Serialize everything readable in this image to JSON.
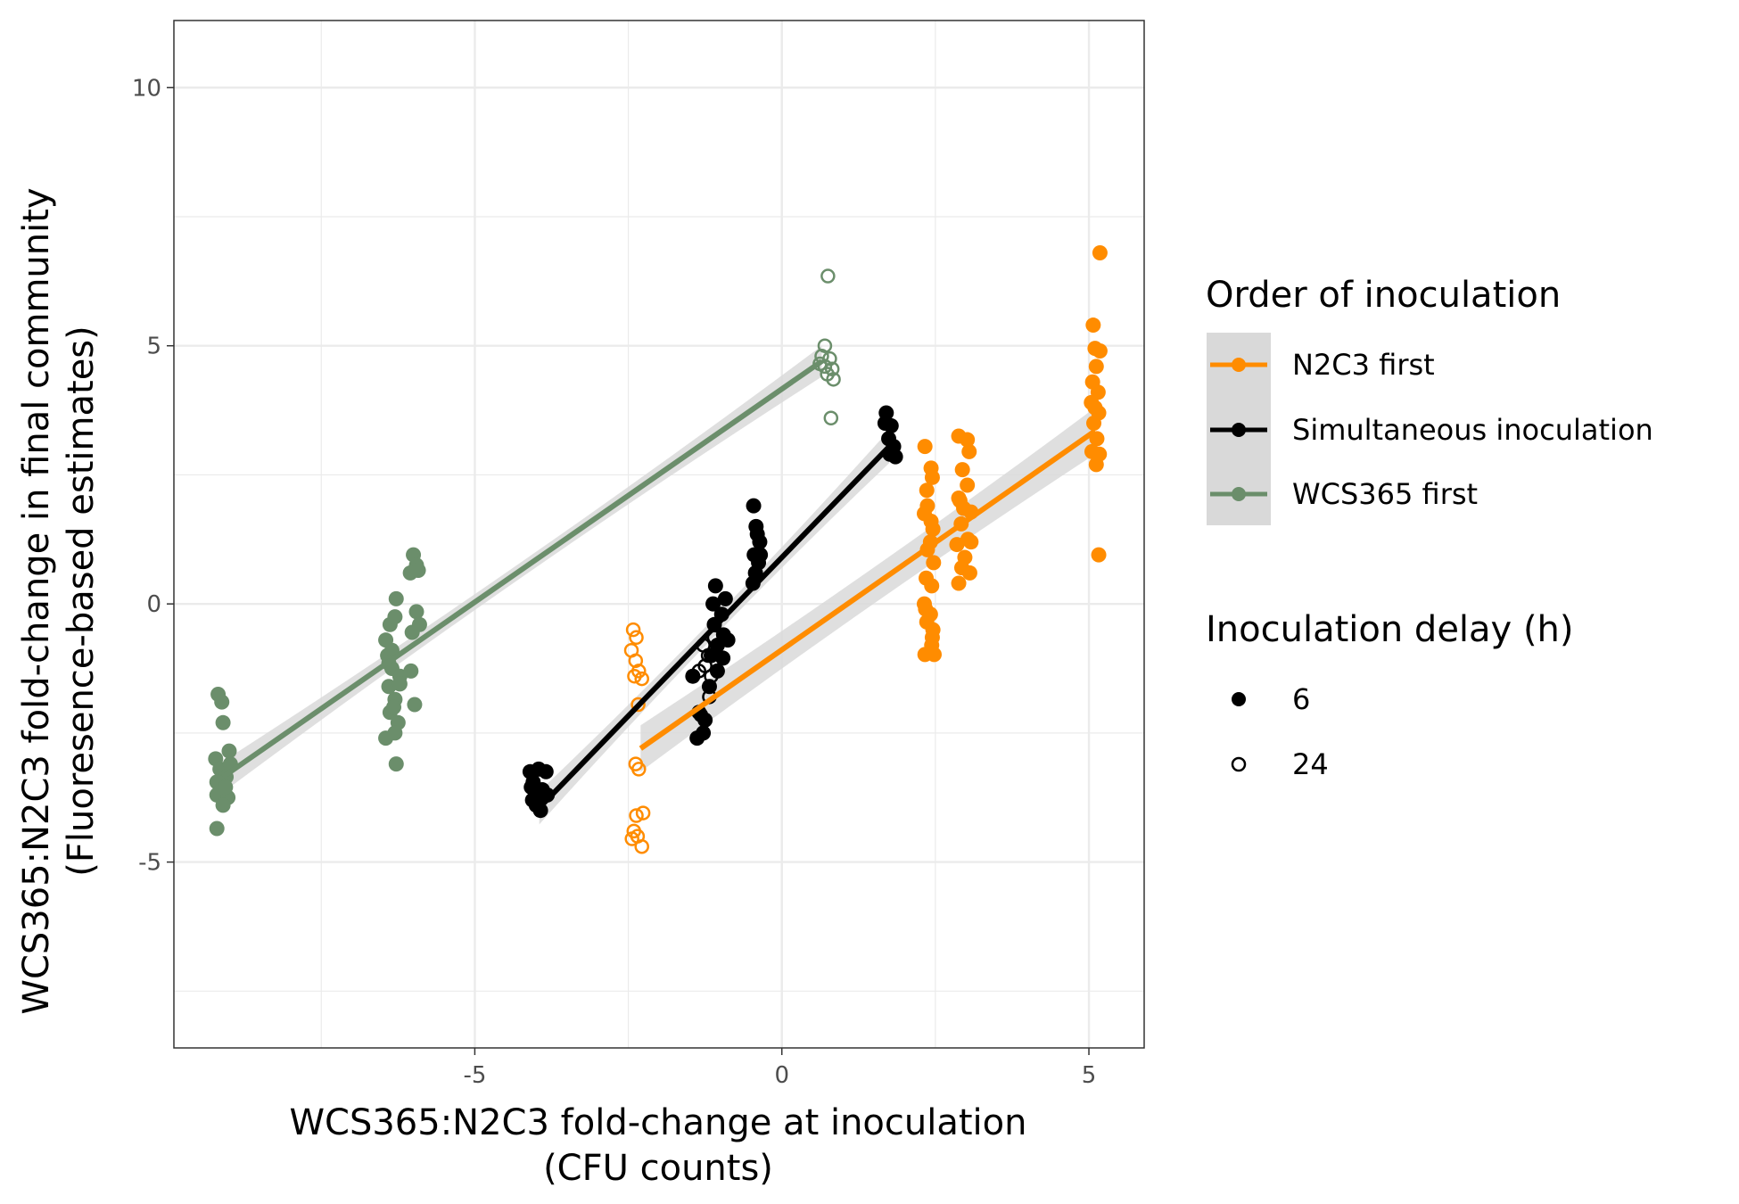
{
  "chart_data": {
    "type": "scatter",
    "xlabel": [
      "WCS365:N2C3 fold-change at inoculation",
      "(CFU counts)"
    ],
    "ylabel": [
      "WCS365:N2C3 fold-change in final community",
      "(Fluoresence-based estimates)"
    ],
    "xlim": [
      -9.9,
      5.9
    ],
    "ylim": [
      -8.6,
      11.3
    ],
    "xticks": [
      -5,
      0,
      5
    ],
    "xtick_labels": [
      "-5",
      "0",
      "5"
    ],
    "yticks": [
      -5,
      0,
      5,
      10
    ],
    "ytick_labels": [
      "-5",
      "0",
      "5",
      "10"
    ],
    "grid": true,
    "legend_placement": "right",
    "colors": {
      "N2C3 first": "#ff8c00",
      "Simultaneous inoculation": "#000000",
      "WCS365 first": "#6b8e6b",
      "ribbon": "#d9d9d9",
      "grid_major": "#ebebeb",
      "panel_border": "#333333"
    },
    "legend_color": {
      "title": "Order of inoculation",
      "entries": [
        "N2C3 first",
        "Simultaneous inoculation",
        "WCS365 first"
      ]
    },
    "legend_shape": {
      "title": "Inoculation delay (h)",
      "entries": [
        {
          "label": "6",
          "shape": "filled-circle"
        },
        {
          "label": "24",
          "shape": "open-circle"
        }
      ]
    },
    "series": [
      {
        "name": "N2C3 first",
        "color": "#ff8c00",
        "fit": {
          "x": [
            -2.3,
            5.1
          ],
          "y": [
            -2.8,
            3.35
          ]
        },
        "ribbon_halfwidth": [
          0.45,
          0.35,
          0.45
        ],
        "points_6h": [
          [
            2.33,
            3.05
          ],
          [
            2.43,
            2.63
          ],
          [
            2.45,
            2.45
          ],
          [
            2.37,
            1.9
          ],
          [
            2.32,
            1.75
          ],
          [
            2.46,
            1.45
          ],
          [
            2.42,
            1.2
          ],
          [
            2.37,
            1.05
          ],
          [
            2.47,
            0.8
          ],
          [
            2.35,
            0.5
          ],
          [
            2.44,
            0.35
          ],
          [
            2.32,
            0.0
          ],
          [
            2.42,
            -0.2
          ],
          [
            2.36,
            -0.35
          ],
          [
            2.46,
            -0.5
          ],
          [
            2.44,
            -0.8
          ],
          [
            2.33,
            -0.98
          ],
          [
            2.48,
            -0.98
          ],
          [
            2.45,
            -0.65
          ],
          [
            2.34,
            -0.1
          ],
          [
            2.43,
            1.6
          ],
          [
            2.36,
            2.2
          ],
          [
            2.88,
            3.25
          ],
          [
            3.02,
            3.18
          ],
          [
            3.05,
            2.95
          ],
          [
            2.94,
            2.6
          ],
          [
            3.02,
            2.3
          ],
          [
            2.88,
            2.05
          ],
          [
            2.96,
            1.85
          ],
          [
            3.08,
            1.78
          ],
          [
            2.92,
            1.55
          ],
          [
            3.03,
            1.25
          ],
          [
            2.85,
            1.15
          ],
          [
            2.98,
            0.9
          ],
          [
            3.06,
            0.6
          ],
          [
            2.88,
            0.4
          ],
          [
            2.93,
            0.7
          ],
          [
            3.08,
            1.2
          ],
          [
            2.9,
            2.0
          ],
          [
            5.07,
            5.4
          ],
          [
            5.18,
            4.9
          ],
          [
            5.12,
            4.6
          ],
          [
            5.06,
            4.3
          ],
          [
            5.15,
            4.1
          ],
          [
            5.04,
            3.9
          ],
          [
            5.16,
            3.7
          ],
          [
            5.08,
            3.5
          ],
          [
            5.13,
            3.2
          ],
          [
            5.05,
            2.95
          ],
          [
            5.17,
            2.9
          ],
          [
            5.12,
            2.7
          ],
          [
            5.18,
            6.8
          ],
          [
            5.16,
            0.95
          ],
          [
            5.1,
            3.8
          ],
          [
            5.1,
            4.95
          ]
        ],
        "points_24h": [
          [
            -2.42,
            -0.5
          ],
          [
            -2.37,
            -0.65
          ],
          [
            -2.45,
            -0.9
          ],
          [
            -2.38,
            -1.1
          ],
          [
            -2.33,
            -1.3
          ],
          [
            -2.4,
            -1.4
          ],
          [
            -2.28,
            -1.45
          ],
          [
            -2.34,
            -1.95
          ],
          [
            -2.38,
            -3.1
          ],
          [
            -2.33,
            -3.2
          ],
          [
            -2.26,
            -4.05
          ],
          [
            -2.37,
            -4.1
          ],
          [
            -2.41,
            -4.4
          ],
          [
            -2.35,
            -4.5
          ],
          [
            -2.44,
            -4.55
          ],
          [
            -2.28,
            -4.7
          ]
        ]
      },
      {
        "name": "Simultaneous inoculation",
        "color": "#000000",
        "fit": {
          "x": [
            -3.95,
            1.75
          ],
          "y": [
            -3.95,
            3.05
          ]
        },
        "ribbon_halfwidth": [
          0.32,
          0.18,
          0.32
        ],
        "points_6h": [
          [
            -4.1,
            -3.25
          ],
          [
            -3.96,
            -3.2
          ],
          [
            -3.84,
            -3.25
          ],
          [
            -4.05,
            -3.45
          ],
          [
            -3.9,
            -3.6
          ],
          [
            -4.06,
            -3.8
          ],
          [
            -3.94,
            -3.75
          ],
          [
            -4.0,
            -3.9
          ],
          [
            -3.82,
            -3.7
          ],
          [
            -4.08,
            -3.55
          ],
          [
            -3.93,
            -4.0
          ],
          [
            -1.38,
            -2.6
          ],
          [
            -1.28,
            -2.5
          ],
          [
            -1.35,
            -2.1
          ],
          [
            -1.25,
            -2.25
          ],
          [
            -1.45,
            -1.4
          ],
          [
            -1.15,
            -1.0
          ],
          [
            -1.05,
            -0.8
          ],
          [
            -0.95,
            -0.6
          ],
          [
            -1.1,
            -0.4
          ],
          [
            -0.98,
            -0.2
          ],
          [
            -1.12,
            0.0
          ],
          [
            -0.92,
            0.1
          ],
          [
            -1.08,
            0.35
          ],
          [
            -0.88,
            -0.7
          ],
          [
            -1.18,
            -1.6
          ],
          [
            -1.05,
            -1.3
          ],
          [
            -0.96,
            -1.05
          ],
          [
            -0.46,
            1.9
          ],
          [
            -0.42,
            1.5
          ],
          [
            -0.36,
            1.2
          ],
          [
            -0.45,
            0.95
          ],
          [
            -0.38,
            0.8
          ],
          [
            -0.43,
            0.6
          ],
          [
            -0.35,
            0.95
          ],
          [
            -0.47,
            0.4
          ],
          [
            -0.4,
            1.35
          ],
          [
            1.7,
            3.7
          ],
          [
            1.78,
            3.45
          ],
          [
            1.74,
            3.2
          ],
          [
            1.82,
            3.05
          ],
          [
            1.76,
            2.9
          ],
          [
            1.68,
            3.5
          ],
          [
            1.85,
            2.85
          ]
        ],
        "points_24h": [
          [
            -1.35,
            -1.3
          ],
          [
            -1.25,
            -1.2
          ],
          [
            -1.15,
            -1.4
          ],
          [
            -1.2,
            -1.0
          ],
          [
            -1.28,
            -0.8
          ],
          [
            -1.1,
            -0.65
          ],
          [
            -1.18,
            -1.8
          ],
          [
            -1.32,
            -2.15
          ]
        ]
      },
      {
        "name": "WCS365 first",
        "color": "#6b8e6b",
        "fit": {
          "x": [
            -9.1,
            0.65
          ],
          "y": [
            -3.35,
            4.7
          ]
        },
        "ribbon_halfwidth": [
          0.3,
          0.15,
          0.3
        ],
        "points_6h": [
          [
            -9.18,
            -1.75
          ],
          [
            -9.12,
            -1.9
          ],
          [
            -9.1,
            -2.3
          ],
          [
            -9.22,
            -3.0
          ],
          [
            -9.0,
            -2.85
          ],
          [
            -9.15,
            -3.2
          ],
          [
            -9.05,
            -3.35
          ],
          [
            -9.2,
            -3.45
          ],
          [
            -8.98,
            -3.1
          ],
          [
            -9.12,
            -3.6
          ],
          [
            -9.2,
            -3.7
          ],
          [
            -9.02,
            -3.75
          ],
          [
            -9.1,
            -3.9
          ],
          [
            -9.2,
            -4.35
          ],
          [
            -9.06,
            -3.55
          ],
          [
            -6.45,
            -0.7
          ],
          [
            -6.38,
            -0.4
          ],
          [
            -6.3,
            -0.25
          ],
          [
            -6.28,
            0.1
          ],
          [
            -6.42,
            -1.0
          ],
          [
            -6.35,
            -1.25
          ],
          [
            -6.22,
            -1.4
          ],
          [
            -6.4,
            -1.6
          ],
          [
            -6.3,
            -1.85
          ],
          [
            -6.38,
            -2.1
          ],
          [
            -6.25,
            -2.3
          ],
          [
            -6.45,
            -2.6
          ],
          [
            -6.3,
            -2.5
          ],
          [
            -6.28,
            -3.1
          ],
          [
            -6.35,
            -0.9
          ],
          [
            -6.22,
            -1.55
          ],
          [
            -6.4,
            -1.15
          ],
          [
            -6.32,
            -2.0
          ],
          [
            -6.0,
            0.95
          ],
          [
            -5.95,
            0.75
          ],
          [
            -6.05,
            0.6
          ],
          [
            -5.92,
            0.65
          ],
          [
            -5.95,
            -0.15
          ],
          [
            -6.02,
            -0.55
          ],
          [
            -5.98,
            -1.95
          ],
          [
            -6.04,
            -1.3
          ],
          [
            -5.9,
            -0.4
          ]
        ],
        "points_24h": [
          [
            0.75,
            6.35
          ],
          [
            0.7,
            5.0
          ],
          [
            0.65,
            4.8
          ],
          [
            0.78,
            4.75
          ],
          [
            0.82,
            4.55
          ],
          [
            0.7,
            4.6
          ],
          [
            0.62,
            4.65
          ],
          [
            0.84,
            4.35
          ],
          [
            0.8,
            3.6
          ],
          [
            0.74,
            4.45
          ]
        ]
      }
    ]
  }
}
